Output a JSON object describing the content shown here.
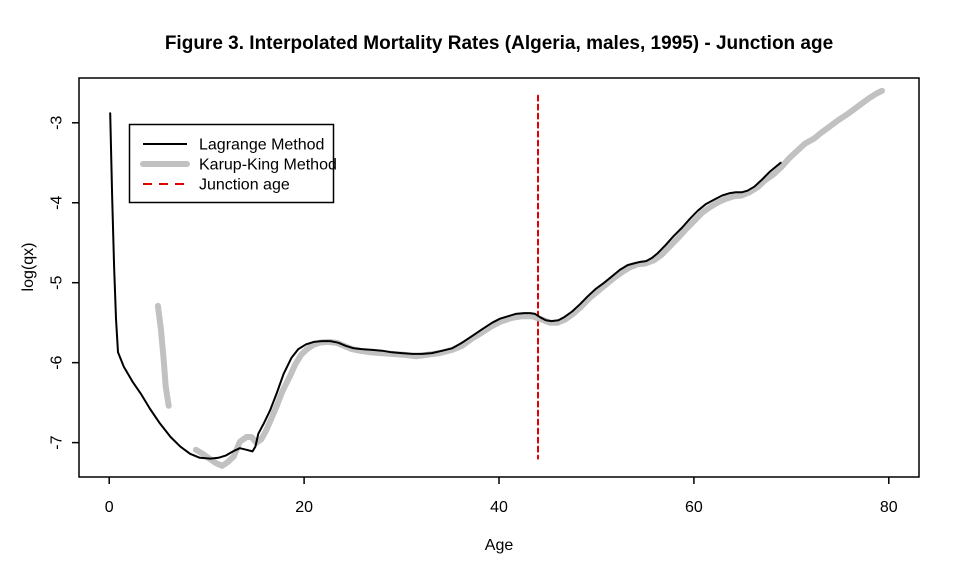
{
  "chart_data": {
    "type": "line",
    "title": "Figure 3. Interpolated Mortality Rates (Algeria, males, 1995) - Junction age",
    "xlabel": "Age",
    "ylabel": "log(qx)",
    "x_ticks": [
      0,
      20,
      40,
      60,
      80
    ],
    "y_ticks": [
      -3,
      -4,
      -5,
      -6,
      -7
    ],
    "xlim": [
      -3.1,
      83.1
    ],
    "ylim": [
      -7.43,
      -2.44
    ],
    "grid": false,
    "legend_position": "top-left",
    "junction_age": 44,
    "series": [
      {
        "name": "Lagrange Method",
        "color": "#000000",
        "line_width": 2,
        "style": "solid",
        "segments": [
          [
            [
              0.1,
              -2.88
            ],
            [
              0.3,
              -3.9
            ],
            [
              0.5,
              -4.8
            ],
            [
              0.7,
              -5.45
            ],
            [
              0.9,
              -5.87
            ],
            [
              1.5,
              -6.05
            ],
            [
              2.4,
              -6.24
            ],
            [
              3.3,
              -6.4
            ],
            [
              4.2,
              -6.58
            ],
            [
              5.2,
              -6.76
            ],
            [
              6.3,
              -6.93
            ],
            [
              7.3,
              -7.05
            ],
            [
              8.3,
              -7.14
            ],
            [
              9.3,
              -7.19
            ],
            [
              10.4,
              -7.2
            ],
            [
              11.2,
              -7.19
            ],
            [
              12,
              -7.16
            ],
            [
              12.7,
              -7.11
            ],
            [
              13.4,
              -7.07
            ],
            [
              14.1,
              -7.09
            ],
            [
              14.7,
              -7.11
            ],
            [
              15,
              -7.05
            ],
            [
              15.3,
              -6.89
            ],
            [
              15.9,
              -6.75
            ],
            [
              16.5,
              -6.6
            ],
            [
              17.2,
              -6.38
            ],
            [
              17.9,
              -6.14
            ],
            [
              18.7,
              -5.94
            ],
            [
              19.4,
              -5.83
            ],
            [
              20.2,
              -5.77
            ],
            [
              21,
              -5.74
            ],
            [
              21.8,
              -5.73
            ],
            [
              22.7,
              -5.73
            ],
            [
              23.5,
              -5.75
            ],
            [
              24.3,
              -5.79
            ],
            [
              25.1,
              -5.82
            ],
            [
              25.9,
              -5.83
            ],
            [
              27,
              -5.84
            ],
            [
              28,
              -5.85
            ],
            [
              29,
              -5.87
            ],
            [
              30,
              -5.88
            ],
            [
              31.1,
              -5.89
            ],
            [
              32.1,
              -5.89
            ],
            [
              33.1,
              -5.88
            ],
            [
              34.2,
              -5.85
            ],
            [
              35.2,
              -5.82
            ],
            [
              36.2,
              -5.75
            ],
            [
              37.2,
              -5.67
            ],
            [
              38.3,
              -5.58
            ],
            [
              39.3,
              -5.5
            ],
            [
              40.1,
              -5.45
            ],
            [
              40.9,
              -5.42
            ],
            [
              41.7,
              -5.39
            ],
            [
              42.6,
              -5.38
            ],
            [
              43.2,
              -5.38
            ],
            [
              43.7,
              -5.39
            ],
            [
              44.2,
              -5.43
            ],
            [
              44.8,
              -5.47
            ],
            [
              45.4,
              -5.48
            ],
            [
              46.1,
              -5.47
            ],
            [
              46.7,
              -5.43
            ],
            [
              47.5,
              -5.36
            ],
            [
              48.3,
              -5.27
            ],
            [
              49.1,
              -5.17
            ],
            [
              49.9,
              -5.08
            ],
            [
              50.8,
              -5
            ],
            [
              51.6,
              -4.92
            ],
            [
              52.4,
              -4.84
            ],
            [
              53.2,
              -4.78
            ],
            [
              53.8,
              -4.76
            ],
            [
              54.5,
              -4.74
            ],
            [
              55.1,
              -4.73
            ],
            [
              55.7,
              -4.69
            ],
            [
              56.3,
              -4.63
            ],
            [
              57.1,
              -4.53
            ],
            [
              57.9,
              -4.42
            ],
            [
              58.8,
              -4.31
            ],
            [
              59.6,
              -4.2
            ],
            [
              60.4,
              -4.1
            ],
            [
              61.2,
              -4.02
            ],
            [
              62.1,
              -3.96
            ],
            [
              62.9,
              -3.91
            ],
            [
              63.7,
              -3.88
            ],
            [
              64.3,
              -3.87
            ],
            [
              64.9,
              -3.87
            ],
            [
              65.5,
              -3.85
            ],
            [
              66.2,
              -3.8
            ],
            [
              67,
              -3.71
            ],
            [
              67.8,
              -3.61
            ],
            [
              68.5,
              -3.54
            ],
            [
              68.9,
              -3.5
            ]
          ]
        ]
      },
      {
        "name": "Karup-King Method",
        "color": "#C1C1C1",
        "line_width": 6,
        "style": "solid",
        "segments": [
          [
            [
              5,
              -5.29
            ],
            [
              5.3,
              -5.58
            ],
            [
              5.6,
              -5.98
            ],
            [
              5.8,
              -6.3
            ],
            [
              6.1,
              -6.54
            ]
          ],
          [
            [
              8.9,
              -7.09
            ],
            [
              9.6,
              -7.14
            ],
            [
              10.4,
              -7.21
            ],
            [
              11,
              -7.26
            ],
            [
              11.6,
              -7.29
            ],
            [
              12.2,
              -7.24
            ],
            [
              12.8,
              -7.17
            ],
            [
              13.4,
              -6.99
            ],
            [
              14.1,
              -6.93
            ],
            [
              14.6,
              -6.93
            ],
            [
              15.1,
              -7
            ],
            [
              15.6,
              -6.96
            ],
            [
              16.1,
              -6.85
            ],
            [
              16.6,
              -6.71
            ],
            [
              17.2,
              -6.54
            ],
            [
              17.8,
              -6.35
            ],
            [
              18.5,
              -6.18
            ],
            [
              19.1,
              -6.02
            ],
            [
              19.7,
              -5.9
            ],
            [
              20.3,
              -5.83
            ],
            [
              20.9,
              -5.78
            ],
            [
              21.6,
              -5.75
            ],
            [
              22.4,
              -5.74
            ],
            [
              23.3,
              -5.75
            ],
            [
              24.1,
              -5.79
            ],
            [
              24.9,
              -5.83
            ],
            [
              25.7,
              -5.85
            ],
            [
              26.8,
              -5.87
            ],
            [
              27.8,
              -5.88
            ],
            [
              29,
              -5.89
            ],
            [
              30.2,
              -5.9
            ],
            [
              31.5,
              -5.92
            ],
            [
              32.7,
              -5.9
            ],
            [
              33.9,
              -5.88
            ],
            [
              35.2,
              -5.84
            ],
            [
              36.2,
              -5.79
            ],
            [
              37.2,
              -5.7
            ],
            [
              38.3,
              -5.62
            ],
            [
              39.3,
              -5.54
            ],
            [
              40.3,
              -5.48
            ],
            [
              41.3,
              -5.44
            ],
            [
              42.3,
              -5.42
            ],
            [
              43.4,
              -5.42
            ],
            [
              44.4,
              -5.46
            ],
            [
              45.2,
              -5.5
            ],
            [
              46,
              -5.5
            ],
            [
              46.8,
              -5.46
            ],
            [
              47.7,
              -5.38
            ],
            [
              48.5,
              -5.29
            ],
            [
              49.3,
              -5.19
            ],
            [
              50.1,
              -5.11
            ],
            [
              51,
              -5.02
            ],
            [
              51.8,
              -4.94
            ],
            [
              52.6,
              -4.87
            ],
            [
              53.4,
              -4.81
            ],
            [
              54.2,
              -4.77
            ],
            [
              55,
              -4.76
            ],
            [
              55.9,
              -4.72
            ],
            [
              56.7,
              -4.65
            ],
            [
              57.5,
              -4.55
            ],
            [
              58.3,
              -4.45
            ],
            [
              59.2,
              -4.33
            ],
            [
              60,
              -4.23
            ],
            [
              60.8,
              -4.13
            ],
            [
              61.6,
              -4.06
            ],
            [
              62.4,
              -4
            ],
            [
              63.3,
              -3.95
            ],
            [
              64.1,
              -3.92
            ],
            [
              64.9,
              -3.91
            ],
            [
              65.7,
              -3.87
            ],
            [
              66.5,
              -3.81
            ],
            [
              67.3,
              -3.72
            ],
            [
              68.2,
              -3.64
            ],
            [
              69,
              -3.55
            ],
            [
              69.8,
              -3.44
            ],
            [
              70.6,
              -3.35
            ],
            [
              71.4,
              -3.26
            ],
            [
              72.3,
              -3.2
            ],
            [
              73.1,
              -3.12
            ],
            [
              73.9,
              -3.05
            ],
            [
              74.9,
              -2.96
            ],
            [
              75.9,
              -2.88
            ],
            [
              77,
              -2.78
            ],
            [
              78,
              -2.69
            ],
            [
              78.8,
              -2.63
            ],
            [
              79.3,
              -2.6
            ]
          ]
        ]
      },
      {
        "name": "Junction age",
        "color": "#E00000",
        "line_width": 2,
        "style": "dashed",
        "segments": [
          [
            [
              44,
              -2.66
            ],
            [
              44,
              -7.2
            ]
          ]
        ]
      }
    ]
  }
}
